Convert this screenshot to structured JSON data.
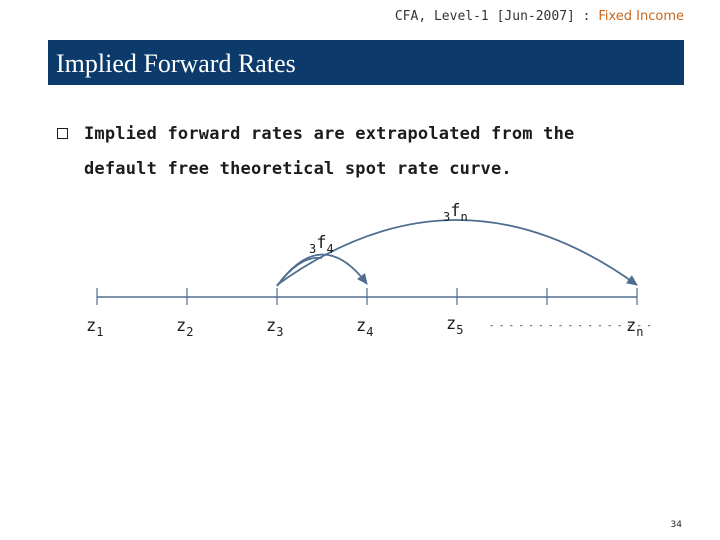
{
  "header": {
    "course": "CFA, Level-1 [Jun-2007] :",
    "topic": "Fixed Income"
  },
  "slide": {
    "title": "Implied Forward Rates",
    "bullet_line_1": "Implied forward rates are extrapolated from the",
    "bullet_line_2": "default free theoretical spot rate curve."
  },
  "diagram": {
    "spot_labels": [
      {
        "base": "z",
        "sub": "1"
      },
      {
        "base": "z",
        "sub": "2"
      },
      {
        "base": "z",
        "sub": "3"
      },
      {
        "base": "z",
        "sub": "4"
      },
      {
        "base": "z",
        "sub": "5"
      },
      {
        "base": "z",
        "sub": "n"
      }
    ],
    "ellipsis": "- - - - - - - - - - - - - - - - -",
    "forward_short": {
      "pre": "3",
      "base": "f",
      "sub": "4"
    },
    "forward_long": {
      "pre": "3",
      "base": "f",
      "sub": "n"
    },
    "arrow_color": "#4f6e8f"
  },
  "page_number": "34"
}
